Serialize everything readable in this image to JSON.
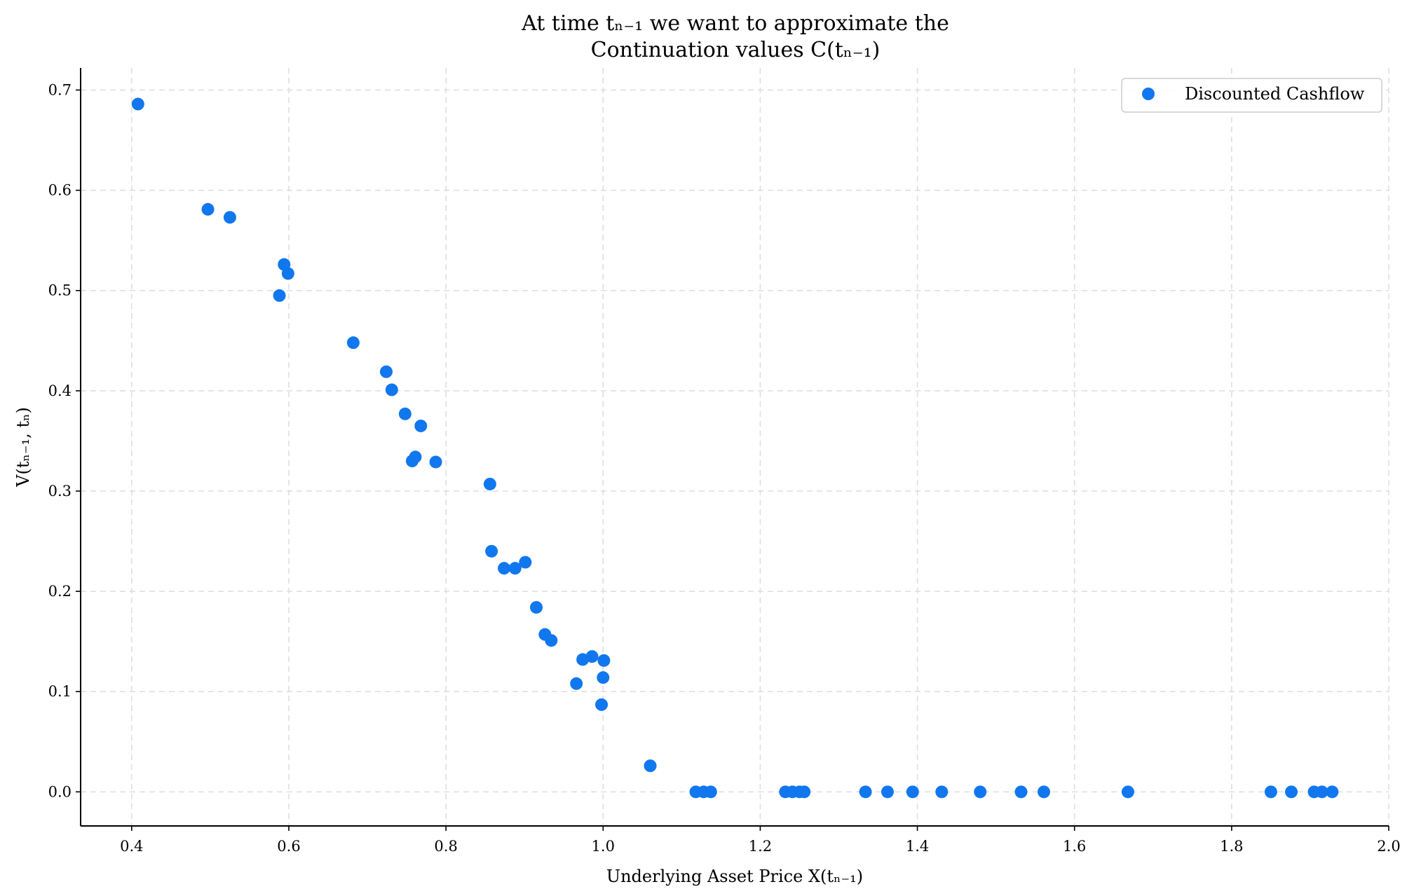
{
  "chart_data": {
    "type": "scatter",
    "title": [
      "At time tₙ₋₁ we want to approximate the",
      "Continuation values C(tₙ₋₁)"
    ],
    "xlabel": "Underlying Asset Price X(tₙ₋₁)",
    "ylabel": "V(tₙ₋₁, tₙ)",
    "xlim": [
      0.335,
      2.0
    ],
    "ylim": [
      -0.034,
      0.722
    ],
    "xticks": [
      "0.4",
      "0.6",
      "0.8",
      "1.0",
      "1.2",
      "1.4",
      "1.6",
      "1.8",
      "2.0"
    ],
    "yticks": [
      "0.0",
      "0.1",
      "0.2",
      "0.3",
      "0.4",
      "0.5",
      "0.6",
      "0.7"
    ],
    "grid": true,
    "legend_position": "top-right",
    "colors": {
      "points": "#1177ee"
    },
    "series": [
      {
        "name": "Discounted Cashflow",
        "points": [
          [
            0.408,
            0.686
          ],
          [
            0.497,
            0.581
          ],
          [
            0.525,
            0.573
          ],
          [
            0.594,
            0.526
          ],
          [
            0.599,
            0.517
          ],
          [
            0.588,
            0.495
          ],
          [
            0.682,
            0.448
          ],
          [
            0.724,
            0.419
          ],
          [
            0.731,
            0.401
          ],
          [
            0.748,
            0.377
          ],
          [
            0.768,
            0.365
          ],
          [
            0.761,
            0.334
          ],
          [
            0.757,
            0.33
          ],
          [
            0.787,
            0.329
          ],
          [
            0.856,
            0.307
          ],
          [
            0.858,
            0.24
          ],
          [
            0.874,
            0.223
          ],
          [
            0.888,
            0.223
          ],
          [
            0.901,
            0.229
          ],
          [
            0.915,
            0.184
          ],
          [
            0.926,
            0.157
          ],
          [
            0.934,
            0.151
          ],
          [
            0.974,
            0.132
          ],
          [
            0.986,
            0.135
          ],
          [
            1.001,
            0.131
          ],
          [
            1.0,
            0.114
          ],
          [
            0.966,
            0.108
          ],
          [
            0.998,
            0.087
          ],
          [
            1.06,
            0.026
          ],
          [
            1.118,
            0.0
          ],
          [
            1.128,
            0.0
          ],
          [
            1.137,
            0.0
          ],
          [
            1.232,
            0.0
          ],
          [
            1.241,
            0.0
          ],
          [
            1.25,
            0.0
          ],
          [
            1.256,
            0.0
          ],
          [
            1.334,
            0.0
          ],
          [
            1.362,
            0.0
          ],
          [
            1.394,
            0.0
          ],
          [
            1.431,
            0.0
          ],
          [
            1.48,
            0.0
          ],
          [
            1.532,
            0.0
          ],
          [
            1.561,
            0.0
          ],
          [
            1.668,
            0.0
          ],
          [
            1.85,
            0.0
          ],
          [
            1.876,
            0.0
          ],
          [
            1.905,
            0.0
          ],
          [
            1.915,
            0.0
          ],
          [
            1.928,
            0.0
          ]
        ]
      }
    ]
  }
}
